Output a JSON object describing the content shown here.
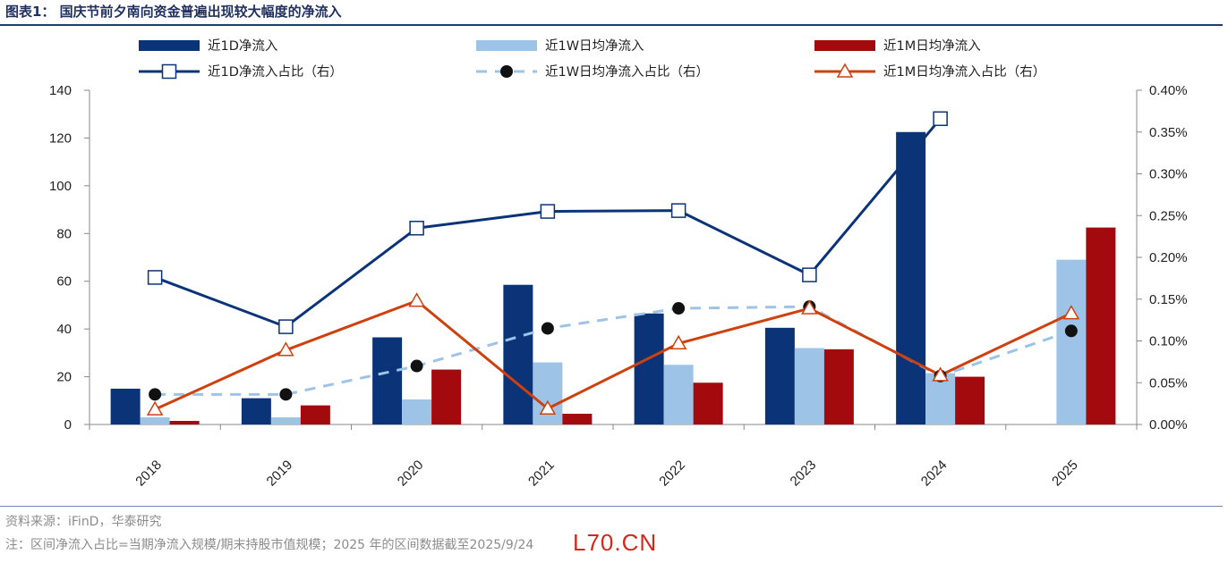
{
  "title": "图表1： 国庆节前夕南向资金普遍出现较大幅度的净流入",
  "source": "资料来源：iFinD，华泰研究",
  "note": "注：区间净流入占比=当期净流入规模/期末持股市值规模；2025 年的区间数据截至2025/9/24",
  "watermark": "L70.CN",
  "chart_data": {
    "type": "bar",
    "categories": [
      "2018",
      "2019",
      "2020",
      "2021",
      "2022",
      "2023",
      "2024",
      "2025"
    ],
    "ylim": [
      0,
      140
    ],
    "yticks": [
      0,
      20,
      40,
      60,
      80,
      100,
      120,
      140
    ],
    "y2lim": [
      0,
      0.4
    ],
    "y2ticks": [
      "0.00%",
      "0.05%",
      "0.10%",
      "0.15%",
      "0.20%",
      "0.25%",
      "0.30%",
      "0.35%",
      "0.40%"
    ],
    "legend_position": "top",
    "series": [
      {
        "name": "近1D净流入",
        "kind": "bar",
        "axis": "left",
        "color": "#0b3377",
        "values": [
          15,
          11,
          36.5,
          58.5,
          46.5,
          40.5,
          122.5,
          null
        ]
      },
      {
        "name": "近1W日均净流入",
        "kind": "bar",
        "axis": "left",
        "color": "#9dc3e6",
        "values": [
          3,
          3,
          10.5,
          26,
          25,
          32,
          21.5,
          69
        ]
      },
      {
        "name": "近1M日均净流入",
        "kind": "bar",
        "axis": "left",
        "color": "#a30a0e",
        "values": [
          1.5,
          8,
          23,
          4.5,
          17.5,
          31.5,
          20,
          82.5
        ]
      },
      {
        "name": "近1D净流入占比（右）",
        "kind": "line",
        "axis": "right",
        "color": "#0b3377",
        "marker": "square",
        "values": [
          0.176,
          0.117,
          0.235,
          0.255,
          0.256,
          0.179,
          0.366,
          null
        ]
      },
      {
        "name": "近1W日均净流入占比（右）",
        "kind": "line",
        "axis": "right",
        "color": "#9dc3e6",
        "dashed": true,
        "marker": "dot",
        "marker_color": "#111111",
        "values": [
          0.036,
          0.036,
          0.07,
          0.115,
          0.139,
          0.141,
          0.058,
          0.112
        ]
      },
      {
        "name": "近1M日均净流入占比（右）",
        "kind": "line",
        "axis": "right",
        "color": "#d0400c",
        "marker": "triangle",
        "values": [
          0.018,
          0.089,
          0.148,
          0.019,
          0.097,
          0.139,
          0.059,
          0.133
        ]
      }
    ]
  }
}
